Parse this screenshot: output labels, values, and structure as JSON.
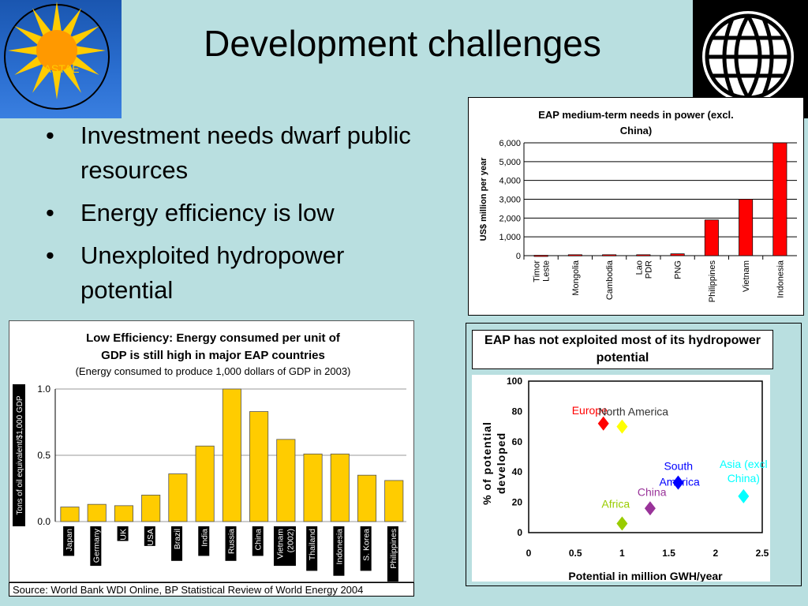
{
  "slide": {
    "title": "Development challenges",
    "bullets": [
      "Investment needs dwarf public resources",
      "Energy efficiency is low",
      "Unexploited hydropower potential"
    ],
    "bullet_char": "•",
    "logo_left_text": "ASTAE",
    "source": "Source: World Bank WDI Online, BP Statistical Review of World Energy 2004"
  },
  "colors": {
    "background": "#b9dfe0",
    "bar_red": "#ff0000",
    "bar_yellow": "#ffcc00"
  },
  "chart_data": [
    {
      "type": "bar",
      "title": "EAP medium-term needs in power (excl. China)",
      "ylabel": "US$ million per year",
      "categories": [
        "Timor Leste",
        "Mongolia",
        "Cambodia",
        "Lao PDR",
        "PNG",
        "Philippines",
        "Vietnam",
        "Indonesia"
      ],
      "values": [
        20,
        50,
        50,
        50,
        100,
        1900,
        3000,
        6000
      ],
      "yticks": [
        "0",
        "1,000",
        "2,000",
        "3,000",
        "4,000",
        "5,000",
        "6,000"
      ],
      "ylim": [
        0,
        6000
      ],
      "grid": true,
      "color": "#ff0000"
    },
    {
      "type": "bar",
      "title": "Low Efficiency: Energy consumed per unit of GDP is still high in major EAP countries",
      "subtitle": "(Energy consumed to produce 1,000 dollars of GDP in 2003)",
      "ylabel": "Tons of oil equivalent/$1,000 GDP",
      "categories": [
        "Japan",
        "Germany",
        "UK",
        "USA",
        "Brazil",
        "India",
        "Russia",
        "China",
        "Vietnam (2002)",
        "Thailand",
        "Indonesia",
        "S. Korea",
        "Philippines"
      ],
      "values": [
        0.11,
        0.13,
        0.12,
        0.2,
        0.36,
        0.57,
        1.0,
        0.83,
        0.62,
        0.51,
        0.51,
        0.35,
        0.31
      ],
      "yticks": [
        "0.0",
        "0.5",
        "1.0"
      ],
      "ylim": [
        0,
        1.0
      ],
      "grid": true,
      "color": "#ffcc00"
    },
    {
      "type": "scatter",
      "title": "EAP has not exploited most of its hydropower potential",
      "xlabel": "Potential in million GWH/year",
      "ylabel": "% of potential developed",
      "xlim": [
        0,
        2.5
      ],
      "ylim": [
        0,
        100
      ],
      "xticks": [
        "0",
        "0.5",
        "1",
        "1.5",
        "2",
        "2.5"
      ],
      "yticks": [
        "0",
        "20",
        "40",
        "60",
        "80",
        "100"
      ],
      "points": [
        {
          "label": "Europe",
          "x": 0.8,
          "y": 72,
          "color": "#ff0000"
        },
        {
          "label": "North America",
          "x": 1.0,
          "y": 70,
          "color": "#ffff00"
        },
        {
          "label": "South America",
          "x": 1.6,
          "y": 33,
          "color": "#0000ff"
        },
        {
          "label": "Asia (excl China)",
          "x": 2.3,
          "y": 24,
          "color": "#00ffff"
        },
        {
          "label": "China",
          "x": 1.3,
          "y": 16,
          "color": "#993399"
        },
        {
          "label": "Africa",
          "x": 1.0,
          "y": 6,
          "color": "#99cc00"
        }
      ]
    }
  ]
}
